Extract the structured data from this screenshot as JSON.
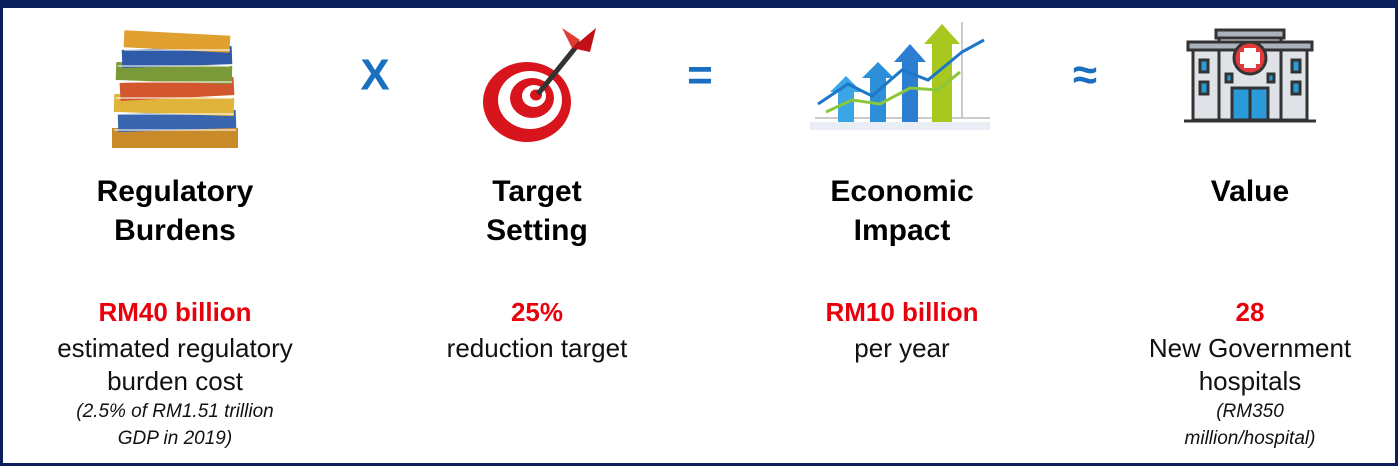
{
  "operators": [
    "X",
    "=",
    "≈"
  ],
  "columns": [
    {
      "title_lines": [
        "Regulatory",
        "Burdens"
      ],
      "highlight": "RM40 billion",
      "description_lines": [
        "estimated regulatory",
        "burden cost"
      ],
      "note_lines": [
        "(2.5% of RM1.51 trillion",
        "GDP in 2019)"
      ]
    },
    {
      "title_lines": [
        "Target",
        "Setting"
      ],
      "highlight": "25%",
      "description_lines": [
        "reduction target"
      ],
      "note_lines": []
    },
    {
      "title_lines": [
        "Economic",
        "Impact"
      ],
      "highlight": "RM10 billion",
      "description_lines": [
        "per year"
      ],
      "note_lines": []
    },
    {
      "title_lines": [
        "Value"
      ],
      "highlight": "28",
      "description_lines": [
        "New Government",
        "hospitals"
      ],
      "note_lines": [
        "(RM350",
        "million/hospital)"
      ]
    }
  ]
}
